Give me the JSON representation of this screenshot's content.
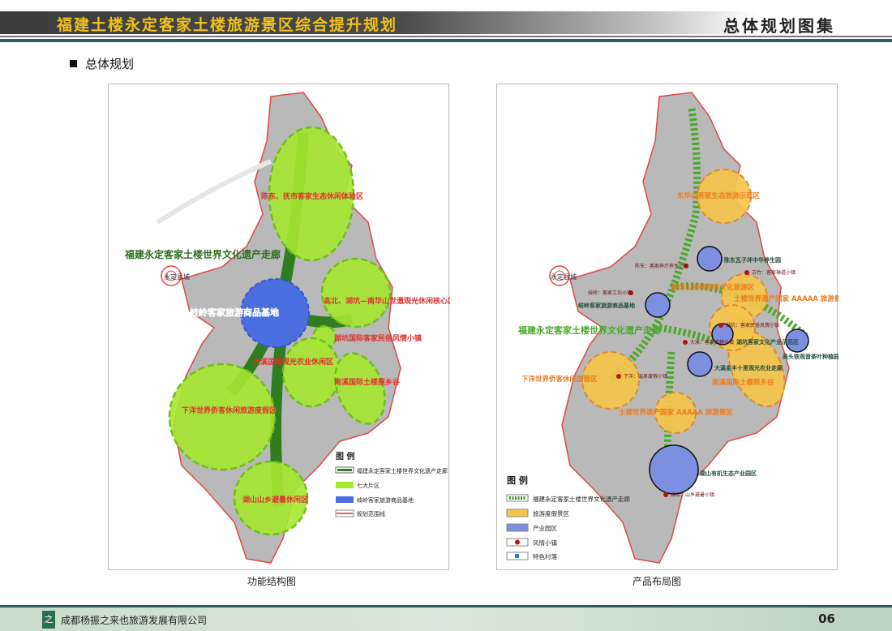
{
  "header": {
    "title": "福建土楼永定客家土楼旅游景区综合提升规划",
    "right": "总体规划图集"
  },
  "section": "总体规划",
  "left_map": {
    "caption": "功能结构图",
    "county": "永定县城",
    "corridor": "福建永定客家土楼世界文化遗产走廊",
    "zones": [
      "陈东、抚市客家生态休闲体验区",
      "高北、湖坑—南华山世遗观光休闲核心区",
      "湖坑国际客家民俗风情小镇",
      "大溪国际观光农业休闲区",
      "南溪国际土楼原乡谷",
      "下洋世界侨客休闲旅游度假区",
      "湖山山乡避暑休闲区"
    ],
    "base": "岐岭客家旅游商品基地",
    "legend": {
      "title": "图 例",
      "items": [
        "福建永定客家土楼世界文化遗产走廊",
        "七大片区",
        "岐岭客家旅游商品基地",
        "规划范围线"
      ]
    },
    "colors": {
      "zone": "#a6e830",
      "corridor": "#2e7d1e",
      "base": "#4a6ee0",
      "boundary": "#e03030"
    }
  },
  "right_map": {
    "caption": "产品布局图",
    "county": "永定县城",
    "corridor": "福建永定客家土楼世界文化遗产走廊",
    "resorts": [
      "东华山客家生态旅游示范区",
      "南华山海峡观音文化旅游区",
      "土楼世界遗产国家 AAAAA 旅游景区",
      "下洋世界侨客休闲度假区",
      "南溪国际土楼原乡谷",
      "土楼世界遗产国家 AAAAA 旅游景区"
    ],
    "parks": [
      "陈东瓦子坪中华养生园",
      "岐岭客家旅游商品基地",
      "湖坑客家文化产业示范区",
      "高头铁观音茶叶种植园区",
      "大溪金丰十里观光农业走廊",
      "湖山有机生态产业园区"
    ],
    "towns": [
      "陈东：客家养疗养生小镇",
      "岐岭：客家工坊小镇",
      "古竹：客家禅道小镇",
      "湖坑：客家民俗风情小镇",
      "大溪：客家农耕小镇",
      "下洋：温泉度假小镇",
      "湖山：山乡避暑小镇"
    ],
    "legend": {
      "title": "图 例",
      "items": [
        "福建永定客家土楼世界文化遗产走廊",
        "旅游度假景区",
        "产业园区",
        "风情小镇",
        "特色村落"
      ]
    },
    "colors": {
      "resort": "#f5c54a",
      "park": "#7c8fe0",
      "town": "#b3160e",
      "village": "#1e7fd8"
    }
  },
  "footer": {
    "company": "成都杨振之来也旅游发展有限公司",
    "page": "06"
  }
}
